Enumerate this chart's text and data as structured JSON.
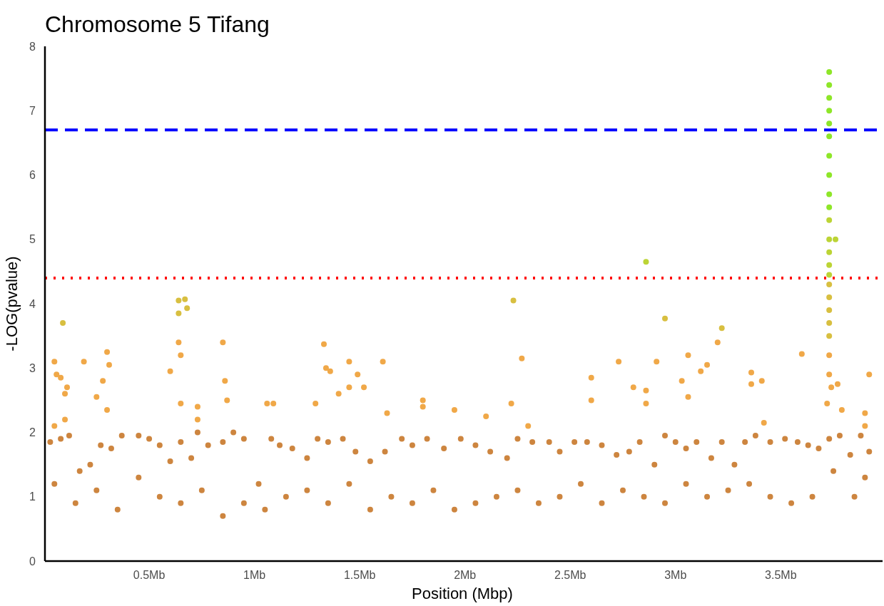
{
  "chart_data": {
    "type": "scatter",
    "title": "Chromosome 5 Tifang",
    "xlabel": "Position (Mbp)",
    "ylabel": "-LOG(pvalue)",
    "xlim": [
      0.005,
      3.97
    ],
    "ylim": [
      0,
      8
    ],
    "xticks": [
      {
        "value": 0.5,
        "label": "0.5Mb"
      },
      {
        "value": 1,
        "label": "1Mb"
      },
      {
        "value": 1.5,
        "label": "1.5Mb"
      },
      {
        "value": 2,
        "label": "2Mb"
      },
      {
        "value": 2.5,
        "label": "2.5Mb"
      },
      {
        "value": 3,
        "label": "3Mb"
      },
      {
        "value": 3.5,
        "label": "3.5Mb"
      }
    ],
    "yticks": [
      0,
      1,
      2,
      3,
      4,
      5,
      6,
      7,
      8
    ],
    "grid": false,
    "marker": "circle",
    "ref_lines": [
      {
        "axis": "y",
        "value": 6.7,
        "color": "#0000ff",
        "line_style": "dashed"
      },
      {
        "axis": "y",
        "value": 4.4,
        "color": "#ff0000",
        "line_style": "dotted"
      }
    ],
    "series": [
      {
        "color": "#cd853f",
        "x": [
          0.03,
          0.08,
          0.12,
          0.17,
          0.22,
          0.27,
          0.32,
          0.37,
          0.45,
          0.5,
          0.55,
          0.6,
          0.65,
          0.7,
          0.73,
          0.78,
          0.85,
          0.9,
          0.95,
          1.02,
          1.08,
          1.12,
          1.18,
          1.25,
          1.3,
          1.35,
          1.42,
          1.48,
          1.55,
          1.62,
          1.7,
          1.75,
          1.82,
          1.9,
          1.98,
          2.05,
          2.12,
          2.2,
          2.25,
          2.32,
          2.4,
          2.45,
          2.52,
          2.58,
          2.65,
          2.72,
          2.78,
          2.83,
          2.9,
          2.95,
          3.0,
          3.05,
          3.1,
          3.17,
          3.22,
          3.28,
          3.33,
          3.38,
          3.45,
          3.52,
          3.58,
          3.63,
          3.68,
          3.73,
          3.78,
          3.83,
          3.88,
          3.92,
          0.05,
          0.15,
          0.25,
          0.35,
          0.45,
          0.55,
          0.65,
          0.75,
          0.85,
          0.95,
          1.05,
          1.15,
          1.25,
          1.35,
          1.45,
          1.55,
          1.65,
          1.75,
          1.85,
          1.95,
          2.05,
          2.15,
          2.25,
          2.35,
          2.45,
          2.55,
          2.65,
          2.75,
          2.85,
          2.95,
          3.05,
          3.15,
          3.25,
          3.35,
          3.45,
          3.55,
          3.65,
          3.75,
          3.85,
          3.9
        ],
        "values": [
          1.85,
          1.9,
          1.95,
          1.4,
          1.5,
          1.8,
          1.75,
          1.95,
          1.95,
          1.9,
          1.8,
          1.55,
          1.85,
          1.6,
          2.0,
          1.8,
          1.85,
          2.0,
          1.9,
          1.2,
          1.9,
          1.8,
          1.75,
          1.6,
          1.9,
          1.85,
          1.9,
          1.7,
          1.55,
          1.7,
          1.9,
          1.8,
          1.9,
          1.75,
          1.9,
          1.8,
          1.7,
          1.6,
          1.9,
          1.85,
          1.85,
          1.7,
          1.85,
          1.85,
          1.8,
          1.65,
          1.7,
          1.85,
          1.5,
          1.95,
          1.85,
          1.75,
          1.85,
          1.6,
          1.85,
          1.5,
          1.85,
          1.95,
          1.85,
          1.9,
          1.85,
          1.8,
          1.75,
          1.9,
          1.95,
          1.65,
          1.95,
          1.7,
          1.2,
          0.9,
          1.1,
          0.8,
          1.3,
          1.0,
          0.9,
          1.1,
          0.7,
          0.9,
          0.8,
          1.0,
          1.1,
          0.9,
          1.2,
          0.8,
          1.0,
          0.9,
          1.1,
          0.8,
          0.9,
          1.0,
          1.1,
          0.9,
          1.0,
          1.2,
          0.9,
          1.1,
          1.0,
          0.9,
          1.2,
          1.0,
          1.1,
          1.2,
          1.0,
          0.9,
          1.0,
          1.4,
          1.0,
          1.3
        ]
      },
      {
        "color": "#f0a848",
        "x": [
          0.05,
          0.06,
          0.08,
          0.1,
          0.11,
          0.05,
          0.1,
          0.19,
          0.28,
          0.3,
          0.31,
          0.3,
          0.25,
          0.64,
          0.65,
          0.6,
          0.65,
          0.73,
          0.73,
          0.85,
          0.86,
          0.87,
          1.06,
          1.09,
          1.29,
          1.33,
          1.34,
          1.36,
          1.4,
          1.45,
          1.45,
          1.49,
          1.52,
          1.61,
          1.63,
          1.8,
          1.8,
          1.95,
          2.1,
          2.22,
          2.27,
          2.3,
          2.6,
          2.6,
          2.73,
          2.8,
          2.86,
          2.86,
          2.91,
          3.03,
          3.06,
          3.06,
          3.12,
          3.15,
          3.2,
          3.36,
          3.36,
          3.41,
          3.42,
          3.6,
          3.73,
          3.73,
          3.74,
          3.72,
          3.77,
          3.79,
          3.92,
          3.9,
          3.9
        ],
        "values": [
          3.1,
          2.9,
          2.85,
          2.6,
          2.7,
          2.1,
          2.2,
          3.1,
          2.8,
          3.25,
          3.05,
          2.35,
          2.55,
          3.4,
          3.2,
          2.95,
          2.45,
          2.4,
          2.2,
          3.4,
          2.8,
          2.5,
          2.45,
          2.45,
          2.45,
          3.37,
          3.0,
          2.95,
          2.6,
          3.1,
          2.7,
          2.9,
          2.7,
          3.1,
          2.3,
          2.5,
          2.4,
          2.35,
          2.25,
          2.45,
          3.15,
          2.1,
          2.85,
          2.5,
          3.1,
          2.7,
          2.65,
          2.45,
          3.1,
          2.8,
          3.2,
          2.55,
          2.95,
          3.05,
          3.4,
          2.93,
          2.75,
          2.8,
          2.15,
          3.22,
          3.2,
          2.9,
          2.7,
          2.45,
          2.75,
          2.35,
          2.9,
          2.3,
          2.1
        ]
      },
      {
        "color": "#d8bf40",
        "x": [
          3.73,
          3.73,
          3.73,
          3.73,
          3.73,
          0.64,
          0.67,
          0.64,
          0.68,
          0.09,
          2.23,
          2.95,
          3.22
        ],
        "values": [
          4.3,
          4.1,
          3.9,
          3.7,
          3.5,
          4.05,
          4.07,
          3.85,
          3.93,
          3.7,
          4.05,
          3.77,
          3.62
        ]
      },
      {
        "color": "#bcd435",
        "x": [
          3.73,
          3.73,
          3.73,
          3.73,
          3.73,
          3.76,
          2.86
        ],
        "values": [
          5.3,
          5.0,
          4.8,
          4.6,
          4.45,
          5.0,
          4.65
        ]
      },
      {
        "color": "#8ee628",
        "x": [
          3.73,
          3.73,
          3.73,
          3.73,
          3.73,
          3.73,
          3.73,
          3.73,
          3.73,
          3.73
        ],
        "values": [
          7.6,
          7.4,
          7.2,
          7.0,
          6.8,
          6.6,
          6.3,
          6.0,
          5.7,
          5.5
        ]
      }
    ]
  }
}
